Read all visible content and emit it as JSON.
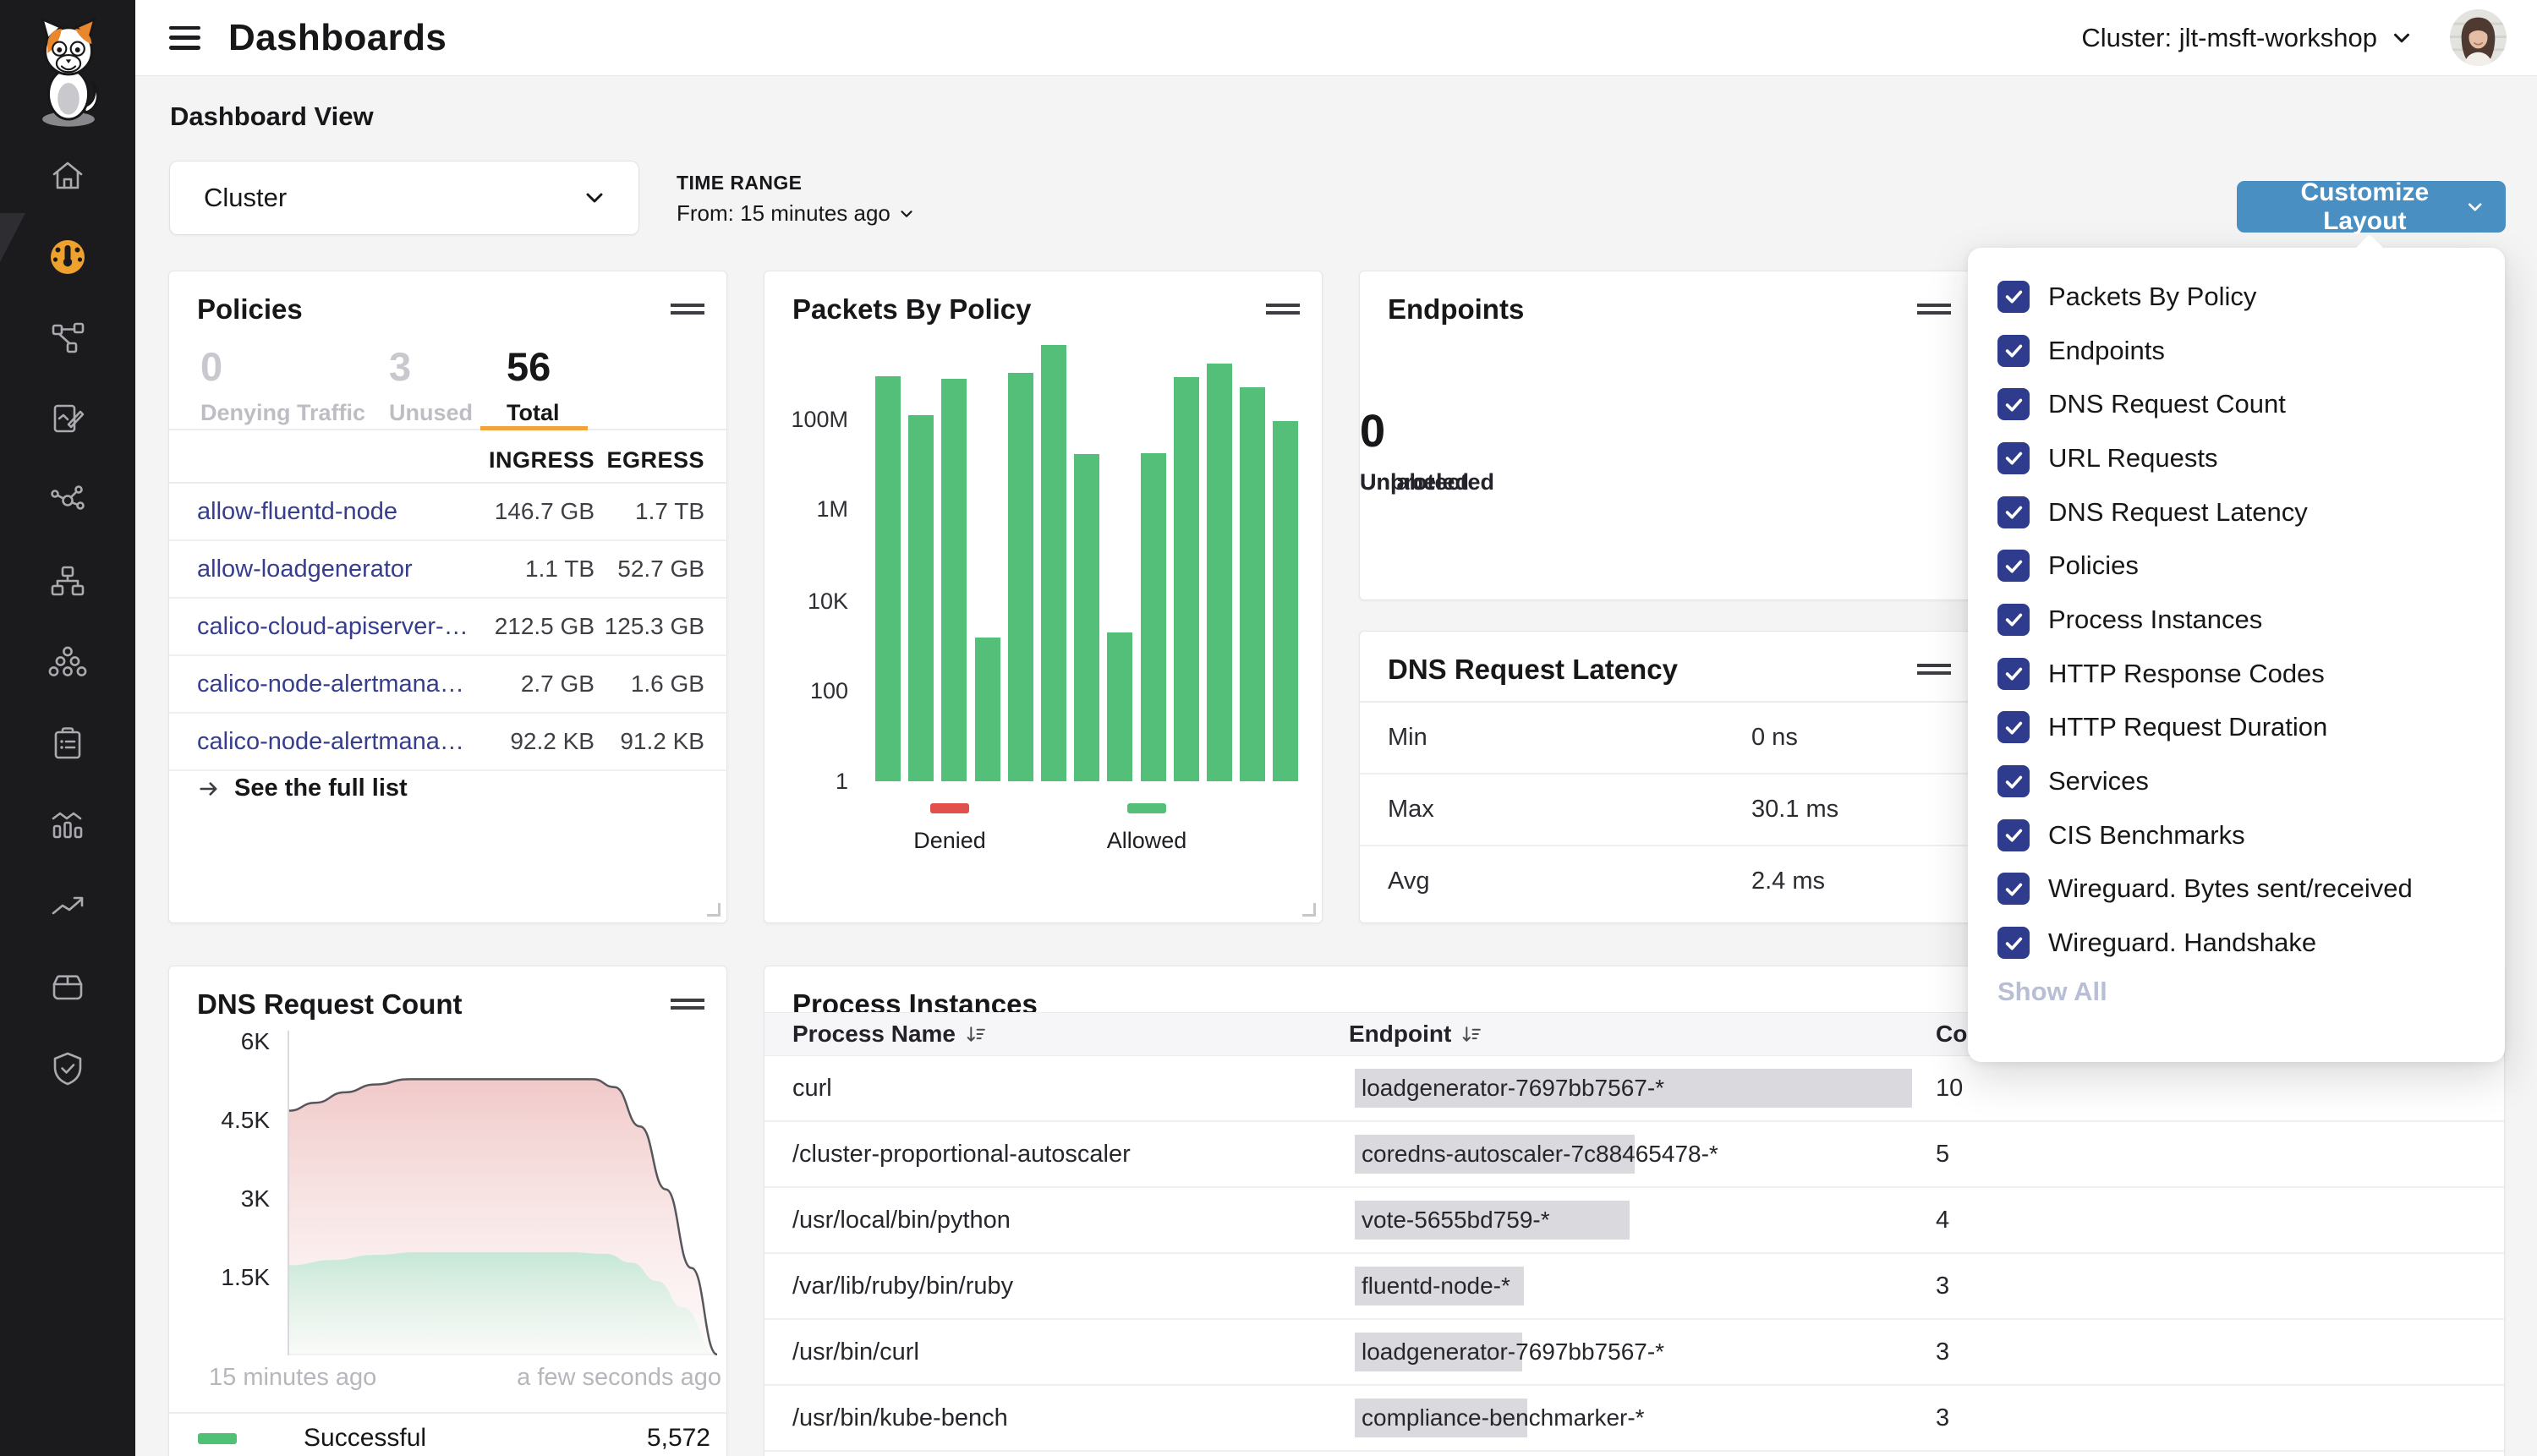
{
  "topbar": {
    "title": "Dashboards",
    "cluster_label": "Cluster: jlt-msft-workshop"
  },
  "subheader": {
    "section_label": "Dashboard View",
    "view_select_value": "Cluster",
    "time_range_label": "TIME RANGE",
    "time_range_value": "From: 15 minutes ago",
    "customize_button": "Customize Layout"
  },
  "sidebar": {
    "items": [
      {
        "name": "home",
        "icon": "home-icon",
        "active": false
      },
      {
        "name": "dashboards",
        "icon": "dashboard-gauge-icon",
        "active": true
      },
      {
        "name": "service-graph",
        "icon": "service-graph-icon",
        "active": false
      },
      {
        "name": "policies",
        "icon": "policy-edit-icon",
        "active": false
      },
      {
        "name": "network",
        "icon": "network-graph-icon",
        "active": false
      },
      {
        "name": "sitemap",
        "icon": "sitemap-icon",
        "active": false
      },
      {
        "name": "clusters",
        "icon": "cluster-nodes-icon",
        "active": false
      },
      {
        "name": "compliance",
        "icon": "clipboard-report-icon",
        "active": false
      },
      {
        "name": "logs",
        "icon": "stats-bars-icon",
        "active": false
      },
      {
        "name": "trends",
        "icon": "trend-arrow-icon",
        "active": false
      },
      {
        "name": "packages",
        "icon": "box-icon",
        "active": false
      },
      {
        "name": "security",
        "icon": "shield-check-icon",
        "active": false
      }
    ]
  },
  "customize_menu": {
    "items": [
      {
        "label": "Packets By Policy",
        "checked": true
      },
      {
        "label": "Endpoints",
        "checked": true
      },
      {
        "label": "DNS Request Count",
        "checked": true
      },
      {
        "label": "URL Requests",
        "checked": true
      },
      {
        "label": "DNS Request Latency",
        "checked": true
      },
      {
        "label": "Policies",
        "checked": true
      },
      {
        "label": "Process Instances",
        "checked": true
      },
      {
        "label": "HTTP Response Codes",
        "checked": true
      },
      {
        "label": "HTTP Request Duration",
        "checked": true
      },
      {
        "label": "Services",
        "checked": true
      },
      {
        "label": "CIS Benchmarks",
        "checked": true
      },
      {
        "label": "Wireguard. Bytes sent/received",
        "checked": true
      },
      {
        "label": "Wireguard. Handshake",
        "checked": true
      }
    ],
    "show_all": "Show All"
  },
  "policies_card": {
    "title": "Policies",
    "stats": [
      {
        "value": "0",
        "label": "Denying Traffic",
        "active": false
      },
      {
        "value": "3",
        "label": "Unused",
        "active": false
      },
      {
        "value": "56",
        "label": "Total",
        "active": true
      }
    ],
    "columns": {
      "ingress": "INGRESS",
      "egress": "EGRESS"
    },
    "rows": [
      {
        "name": "allow-fluentd-node",
        "ingress": "146.7 GB",
        "egress": "1.7 TB"
      },
      {
        "name": "allow-loadgenerator",
        "ingress": "1.1 TB",
        "egress": "52.7 GB"
      },
      {
        "name": "calico-cloud-apiserver-…",
        "ingress": "212.5 GB",
        "egress": "125.3 GB"
      },
      {
        "name": "calico-node-alertmana…",
        "ingress": "2.7 GB",
        "egress": "1.6 GB"
      },
      {
        "name": "calico-node-alertmana…",
        "ingress": "92.2 KB",
        "egress": "91.2 KB"
      }
    ],
    "link": "See the full list"
  },
  "packets_card": {
    "title": "Packets By Policy"
  },
  "endpoints_card": {
    "title": "Endpoints",
    "stats": [
      {
        "value": "0",
        "label": "Unprotected"
      },
      {
        "value": "0",
        "label": "Unlabeled"
      }
    ]
  },
  "dns_latency_card": {
    "title": "DNS Request Latency",
    "rows": [
      {
        "label": "Min",
        "value": "0 ns"
      },
      {
        "label": "Max",
        "value": "30.1 ms"
      },
      {
        "label": "Avg",
        "value": "2.4 ms"
      }
    ]
  },
  "dns_count_card": {
    "title": "DNS Request Count",
    "legend": {
      "label": "Successful",
      "value": "5,572"
    }
  },
  "process_card": {
    "title": "Process Instances",
    "columns": {
      "name": "Process Name",
      "endpoint": "Endpoint",
      "count": "Count"
    },
    "rows": [
      {
        "process": "curl",
        "endpoint": "loadgenerator-7697bb7567-*",
        "count": "10",
        "highlight_width": 659
      },
      {
        "process": "/cluster-proportional-autoscaler",
        "endpoint": "coredns-autoscaler-7c88465478-*",
        "count": "5",
        "highlight_width": 331
      },
      {
        "process": "/usr/local/bin/python",
        "endpoint": "vote-5655bd759-*",
        "count": "4",
        "highlight_width": 325
      },
      {
        "process": "/var/lib/ruby/bin/ruby",
        "endpoint": "fluentd-node-*",
        "count": "3",
        "highlight_width": 200
      },
      {
        "process": "/usr/bin/curl",
        "endpoint": "loadgenerator-7697bb7567-*",
        "count": "3",
        "highlight_width": 198
      },
      {
        "process": "/usr/bin/kube-bench",
        "endpoint": "compliance-benchmarker-*",
        "count": "3",
        "highlight_width": 204
      }
    ]
  },
  "chart_data": [
    {
      "id": "packets_by_policy",
      "type": "bar",
      "title": "Packets By Policy",
      "y_scale": "log",
      "y_ticks": [
        "100M",
        "1M",
        "10K",
        "100",
        "1"
      ],
      "ylim": [
        1,
        10000000000
      ],
      "values": [
        1000000000,
        140000000,
        890000000,
        1600,
        1200000000,
        5000000000,
        19000000,
        2000,
        20000000,
        960000000,
        1900000000,
        580000000,
        100000000
      ],
      "legend": [
        "Denied",
        "Allowed"
      ],
      "series_colors": {
        "denied": "#e2504c",
        "allowed": "#53bf78"
      },
      "grid": false,
      "legend_position": "bottom"
    },
    {
      "id": "dns_request_count",
      "type": "area",
      "title": "DNS Request Count",
      "y_ticks": [
        "6K",
        "4.5K",
        "3K",
        "1.5K"
      ],
      "ylim": [
        0,
        6200
      ],
      "x_labels": [
        "15 minutes ago",
        "a few seconds ago"
      ],
      "series": [
        {
          "name": "total",
          "points": [
            [
              0,
              4700
            ],
            [
              0.06,
              4850
            ],
            [
              0.13,
              5050
            ],
            [
              0.2,
              5200
            ],
            [
              0.28,
              5300
            ],
            [
              0.45,
              5300
            ],
            [
              0.6,
              5300
            ],
            [
              0.71,
              5300
            ],
            [
              0.76,
              5150
            ],
            [
              0.82,
              4400
            ],
            [
              0.88,
              3200
            ],
            [
              0.94,
              1700
            ],
            [
              1.0,
              50
            ]
          ]
        },
        {
          "name": "successful",
          "points": [
            [
              0,
              1750
            ],
            [
              0.1,
              1850
            ],
            [
              0.2,
              1950
            ],
            [
              0.3,
              2000
            ],
            [
              0.5,
              2000
            ],
            [
              0.65,
              2000
            ],
            [
              0.74,
              1970
            ],
            [
              0.8,
              1800
            ],
            [
              0.86,
              1450
            ],
            [
              0.92,
              950
            ],
            [
              1.0,
              20
            ]
          ]
        }
      ],
      "legend": [
        {
          "label": "Successful",
          "value": "5,572",
          "color": "#4fc074"
        }
      ],
      "grid": false,
      "legend_position": "bottom"
    }
  ],
  "colors": {
    "sidebar_bg": "#1b1b1e",
    "accent_orange": "#efa12e",
    "button_blue": "#4a8fc2",
    "checkbox_indigo": "#2f3c8d",
    "bar_green": "#53bf78",
    "denied_red": "#e2504c",
    "success_green": "#4fc074",
    "link_navy": "#363d8f",
    "tab_underline_orange": "#f2a33c"
  }
}
